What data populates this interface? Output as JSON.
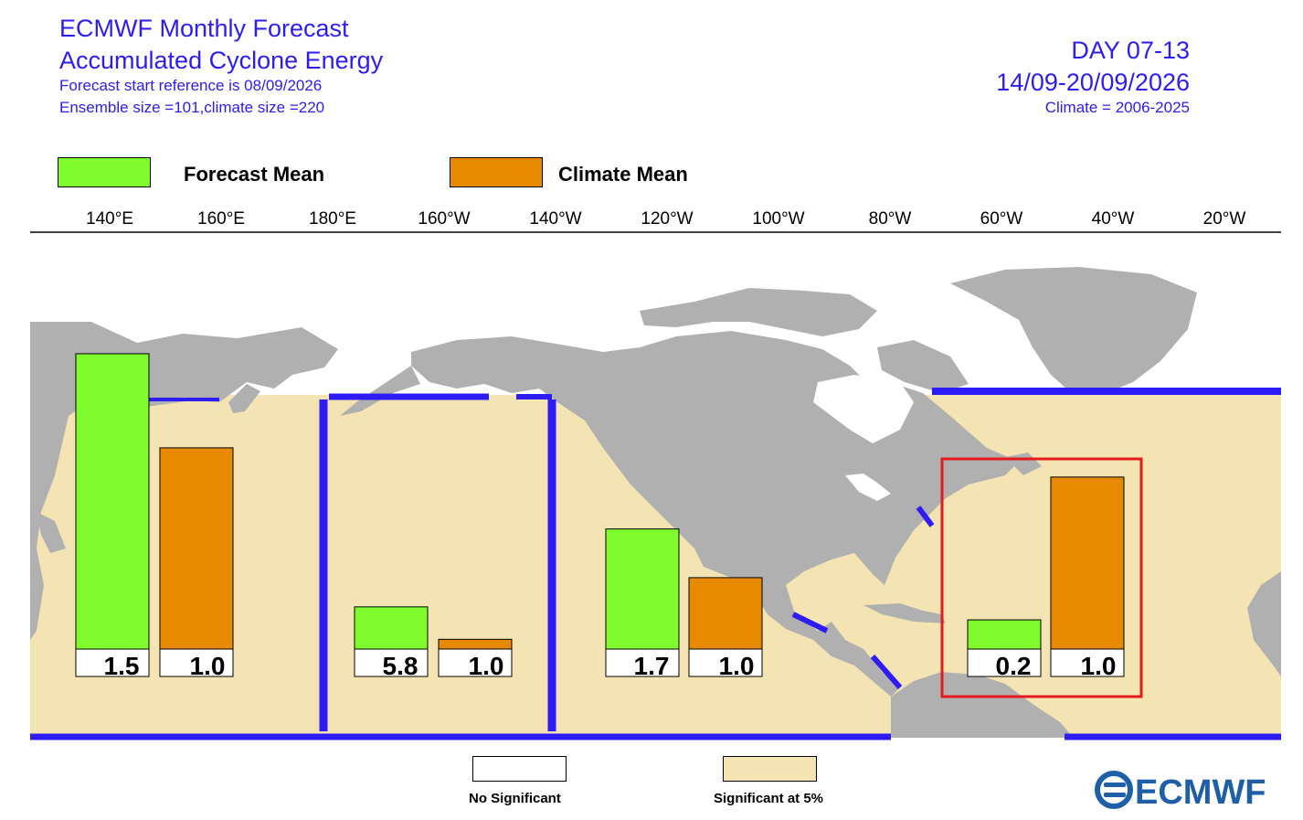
{
  "header": {
    "title_line1": "ECMWF Monthly Forecast",
    "title_line2": "Accumulated Cyclone Energy",
    "start_ref": "Forecast start reference is 08/09/2026",
    "ensemble": "Ensemble size =101,climate size =220",
    "day_range": "DAY 07-13",
    "date_range": "14/09-20/09/2026",
    "climate": "Climate = 2006-2025"
  },
  "legend": {
    "forecast_label": "Forecast Mean",
    "climate_label": "Climate Mean",
    "forecast_color": "#7ffc2e",
    "climate_color": "#e88a00"
  },
  "significance": {
    "none_label": "No Significant",
    "sig_label": "Significant at 5%",
    "none_color": "#ffffff",
    "sig_color": "#f5e4b3"
  },
  "colors": {
    "title": "#2d1cf5",
    "land": "#b0b0b0",
    "ocean_sig": "#f5e4b3",
    "basin_border": "#2d1cf5",
    "highlight": "#e41a1c"
  },
  "logo_text": "ECMWF",
  "chart_data": {
    "type": "bar",
    "x_axis_ticks": [
      "140°E",
      "160°E",
      "180°E",
      "160°W",
      "140°W",
      "120°W",
      "100°W",
      "80°W",
      "60°W",
      "40°W",
      "20°W"
    ],
    "series": [
      {
        "name": "Forecast Mean",
        "values": [
          1.5,
          5.8,
          1.7,
          0.2
        ]
      },
      {
        "name": "Climate Mean",
        "values": [
          1.0,
          1.0,
          1.0,
          1.0
        ]
      }
    ],
    "basins": [
      {
        "forecast_label": "1.5",
        "climate_label": "1.0",
        "forecast_bar_level": 0.91,
        "climate_bar_level": 0.62,
        "significant": true
      },
      {
        "forecast_label": "5.8",
        "climate_label": "1.0",
        "forecast_bar_level": 0.13,
        "climate_bar_level": 0.03,
        "significant": true
      },
      {
        "forecast_label": "1.7",
        "climate_label": "1.0",
        "forecast_bar_level": 0.37,
        "climate_bar_level": 0.22,
        "significant": true
      },
      {
        "forecast_label": "0.2",
        "climate_label": "1.0",
        "forecast_bar_level": 0.09,
        "climate_bar_level": 0.53,
        "significant": true,
        "highlighted": true
      }
    ]
  }
}
